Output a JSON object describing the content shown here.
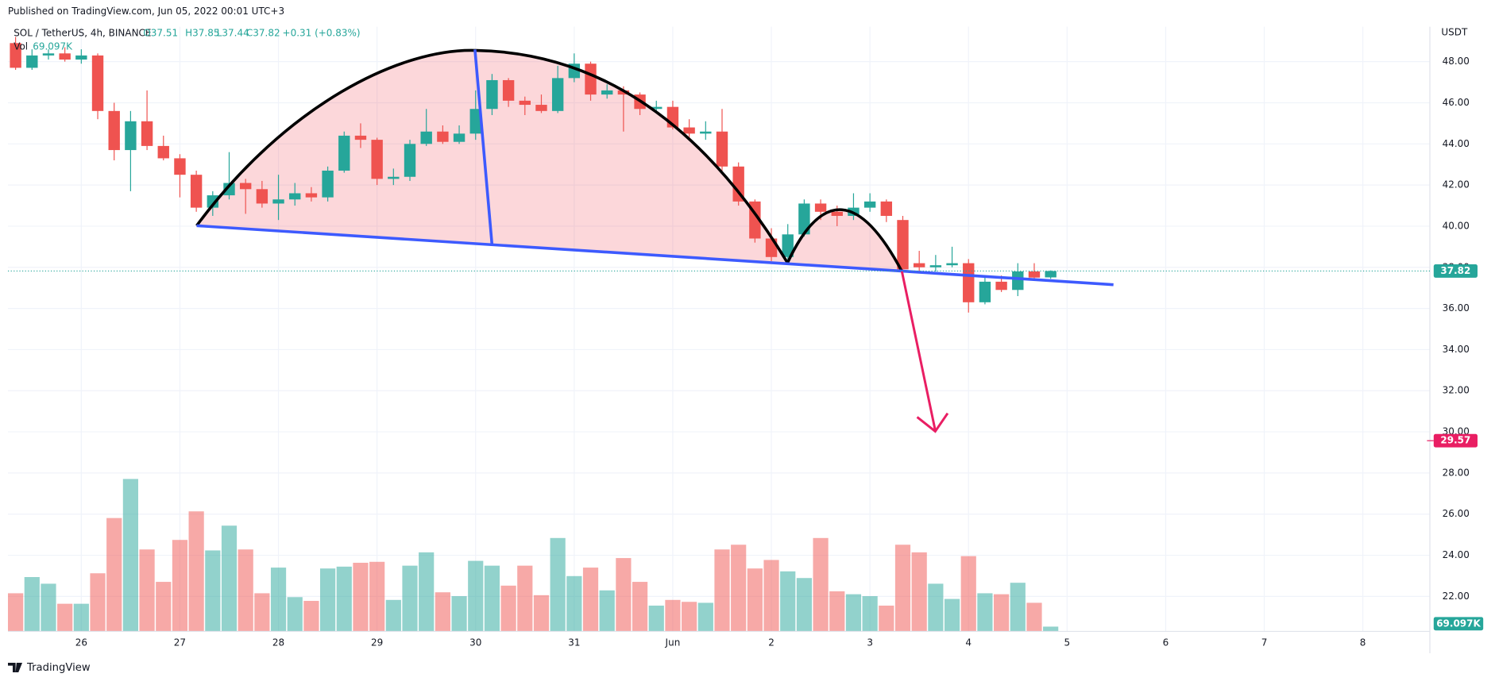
{
  "header": {
    "published": "Published on TradingView.com, Jun 05, 2022 00:01 UTC+3",
    "footer": "TradingView",
    "currency": "USDT"
  },
  "legend": {
    "symbol": "SOL / TetherUS, 4h, BINANCE",
    "open": "O37.51",
    "high": "H37.85",
    "low": "L37.44",
    "close": "C37.82",
    "change": "+0.31 (+0.83%)",
    "volume": "Vol",
    "volume_value": "69.097K"
  },
  "chart_data": {
    "type": "candlestick",
    "xtick_labels": [
      "26",
      "27",
      "28",
      "29",
      "30",
      "31",
      "Jun",
      "2",
      "3",
      "4",
      "5",
      "6",
      "7",
      "8"
    ],
    "open": [
      48.9,
      47.7,
      48.3,
      48.4,
      48.1,
      48.3,
      45.6,
      43.7,
      45.1,
      43.9,
      43.3,
      42.5,
      40.9,
      41.5,
      42.1,
      41.8,
      41.1,
      41.3,
      41.6,
      41.4,
      42.7,
      44.4,
      44.2,
      42.3,
      42.4,
      44.0,
      44.6,
      44.1,
      44.5,
      45.7,
      47.1,
      46.1,
      45.9,
      45.6,
      47.2,
      47.9,
      46.4,
      46.6,
      46.4,
      45.7,
      45.8,
      44.8,
      44.5,
      44.6,
      42.9,
      41.2,
      39.4,
      38.5,
      39.6,
      41.1,
      40.7,
      40.5,
      40.9,
      41.2,
      40.3,
      38.2,
      38.0,
      38.1,
      38.2,
      36.3,
      37.3,
      36.9,
      37.8,
      37.51
    ],
    "high": [
      49.2,
      48.6,
      48.6,
      48.7,
      48.6,
      48.4,
      46.0,
      45.6,
      46.6,
      44.4,
      43.5,
      42.7,
      41.7,
      43.6,
      42.3,
      42.2,
      42.5,
      42.1,
      41.9,
      42.9,
      44.6,
      45.0,
      44.3,
      42.8,
      44.2,
      45.7,
      44.9,
      44.9,
      46.6,
      47.4,
      47.2,
      46.3,
      46.4,
      47.8,
      48.4,
      48.0,
      46.9,
      46.8,
      46.5,
      46.1,
      46.1,
      45.2,
      45.1,
      45.7,
      43.1,
      41.3,
      39.9,
      40.1,
      41.3,
      41.3,
      41.0,
      41.6,
      41.6,
      41.3,
      40.5,
      38.8,
      38.6,
      39.0,
      38.4,
      37.5,
      37.6,
      38.2,
      38.2,
      37.85
    ],
    "low": [
      47.6,
      47.6,
      48.1,
      48.0,
      47.9,
      45.2,
      43.2,
      41.7,
      43.7,
      43.2,
      41.4,
      40.7,
      40.5,
      41.3,
      40.6,
      40.9,
      40.3,
      41.0,
      41.2,
      41.2,
      42.6,
      43.8,
      42.0,
      42.0,
      42.2,
      43.9,
      44.0,
      44.0,
      44.2,
      45.4,
      45.8,
      45.4,
      45.5,
      45.5,
      47.0,
      46.1,
      46.2,
      44.6,
      45.4,
      45.5,
      44.7,
      44.2,
      44.2,
      42.7,
      41.0,
      39.2,
      38.3,
      38.4,
      39.5,
      40.3,
      40.0,
      40.3,
      40.7,
      40.2,
      37.8,
      37.8,
      37.8,
      38.0,
      35.8,
      36.2,
      36.8,
      36.6,
      37.4,
      37.44
    ],
    "close": [
      47.7,
      48.3,
      48.4,
      48.1,
      48.3,
      45.6,
      43.7,
      45.1,
      43.9,
      43.3,
      42.5,
      40.9,
      41.5,
      42.1,
      41.8,
      41.1,
      41.3,
      41.6,
      41.4,
      42.7,
      44.4,
      44.2,
      42.3,
      42.4,
      44.0,
      44.6,
      44.1,
      44.5,
      45.7,
      47.1,
      46.1,
      45.9,
      45.6,
      47.2,
      47.9,
      46.4,
      46.6,
      46.4,
      45.7,
      45.8,
      44.8,
      44.5,
      44.6,
      42.9,
      41.2,
      39.4,
      38.5,
      39.6,
      41.1,
      40.7,
      40.5,
      40.9,
      41.2,
      40.5,
      37.9,
      38.0,
      38.1,
      38.2,
      36.3,
      37.3,
      36.9,
      37.8,
      37.5,
      37.82
    ],
    "volume": [
      555000,
      791000,
      694000,
      402000,
      402000,
      846000,
      1651000,
      2220000,
      1193000,
      721000,
      1332000,
      1748000,
      1179000,
      1540000,
      1193000,
      555000,
      929000,
      499000,
      444000,
      916000,
      943000,
      999000,
      1013000,
      458000,
      957000,
      1151000,
      569000,
      513000,
      1027000,
      957000,
      666000,
      957000,
      527000,
      1360000,
      805000,
      929000,
      597000,
      1068000,
      721000,
      375000,
      458000,
      430000,
      416000,
      1193000,
      1262000,
      916000,
      1040000,
      874000,
      777000,
      1360000,
      583000,
      541000,
      513000,
      375000,
      1262000,
      1151000,
      694000,
      472000,
      1096000,
      555000,
      541000,
      708000,
      416000,
      69097
    ],
    "volume_label": "69.097K",
    "ylim": [
      20.3,
      49.7
    ],
    "yticks": [
      {
        "value": 22,
        "label": "22.00"
      },
      {
        "value": 24,
        "label": "24.00"
      },
      {
        "value": 26,
        "label": "26.00"
      },
      {
        "value": 28,
        "label": "28.00"
      },
      {
        "value": 30,
        "label": "30.00"
      },
      {
        "value": 32,
        "label": "32.00"
      },
      {
        "value": 34,
        "label": "34.00"
      },
      {
        "value": 36,
        "label": "36.00"
      },
      {
        "value": 38,
        "label": "38.00"
      },
      {
        "value": 40,
        "label": "40.00"
      },
      {
        "value": 42,
        "label": "42.00"
      },
      {
        "value": 44,
        "label": "44.00"
      },
      {
        "value": 46,
        "label": "46.00"
      },
      {
        "value": 48,
        "label": "48.00"
      }
    ],
    "vlim": [
      0,
      2400000
    ],
    "target_label": 29.57,
    "up_color": "#26a69a",
    "down_color": "#ef5350",
    "target_color": "#e91e63",
    "grid": true
  }
}
